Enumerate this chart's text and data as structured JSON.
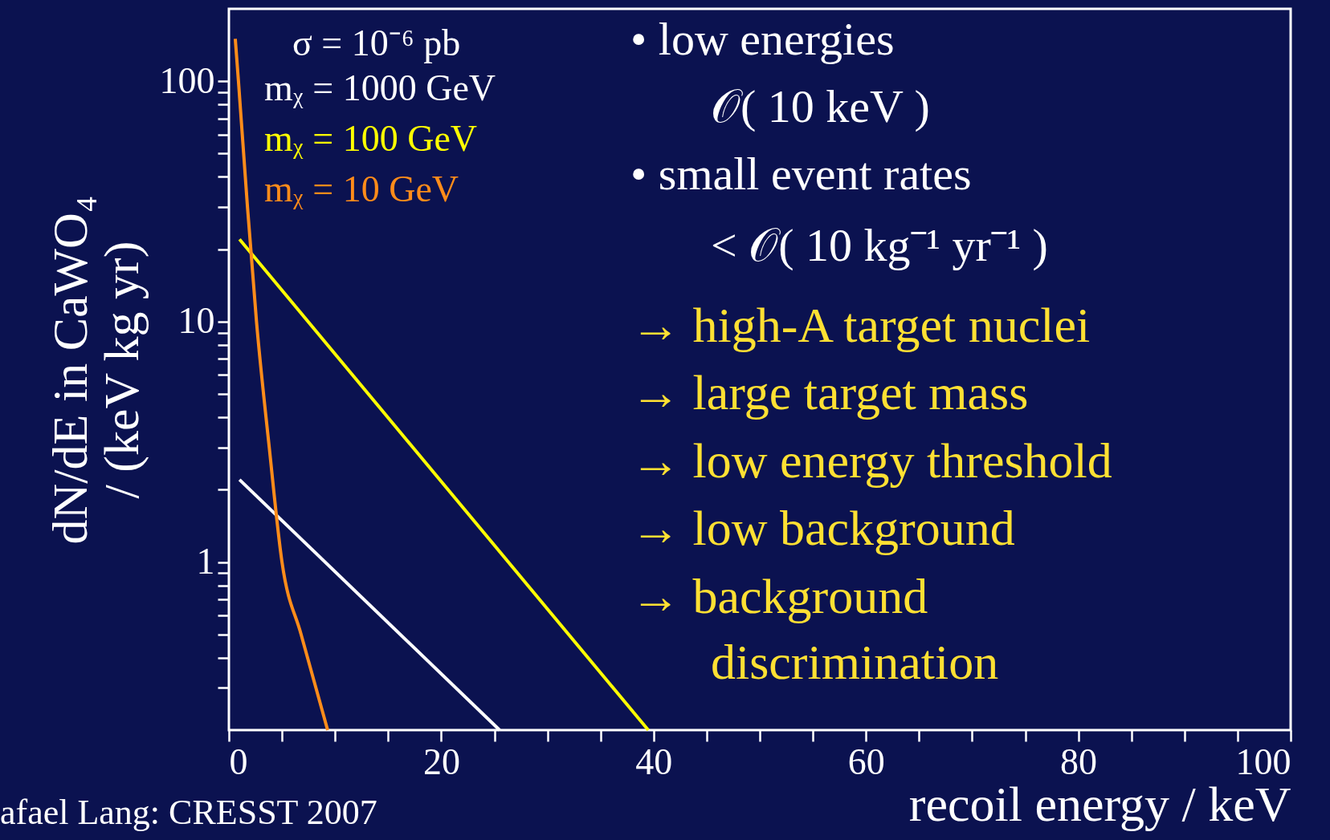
{
  "chart_data": {
    "type": "line",
    "xlabel": "recoil energy / keV",
    "ylabel": [
      "dN/dE in CaWO₄",
      "/ (keV kg yr)"
    ],
    "xlim": [
      0,
      100
    ],
    "ylim": [
      0.2,
      200
    ],
    "log": "y",
    "xticks": [
      0,
      {
        "value": 5,
        "label": null
      },
      {
        "value": 10,
        "label": null
      },
      {
        "value": 15,
        "label": null
      },
      20,
      {
        "value": 25,
        "label": null
      },
      {
        "value": 30,
        "label": null
      },
      {
        "value": 35,
        "label": null
      },
      40,
      {
        "value": 45,
        "label": null
      },
      {
        "value": 50,
        "label": null
      },
      {
        "value": 55,
        "label": null
      },
      60,
      {
        "value": 65,
        "label": null
      },
      {
        "value": 70,
        "label": null
      },
      {
        "value": 75,
        "label": null
      },
      80,
      {
        "value": 85,
        "label": null
      },
      {
        "value": 90,
        "label": null
      },
      {
        "value": 95,
        "label": null
      },
      100
    ],
    "yticks": [
      {
        "value": 0.3,
        "label": null
      },
      {
        "value": 0.4,
        "label": null
      },
      {
        "value": 0.5,
        "label": null
      },
      {
        "value": 0.6,
        "label": null
      },
      {
        "value": 0.7,
        "label": null
      },
      {
        "value": 0.8,
        "label": null
      },
      {
        "value": 0.9,
        "label": null
      },
      1,
      {
        "value": 2,
        "label": null
      },
      {
        "value": 3,
        "label": null
      },
      {
        "value": 4,
        "label": null
      },
      {
        "value": 5,
        "label": null
      },
      {
        "value": 6,
        "label": null
      },
      {
        "value": 7,
        "label": null
      },
      {
        "value": 8,
        "label": null
      },
      {
        "value": 9,
        "label": null
      },
      10,
      {
        "value": 20,
        "label": null
      },
      {
        "value": 30,
        "label": null
      },
      {
        "value": 40,
        "label": null
      },
      {
        "value": 50,
        "label": null
      },
      {
        "value": 60,
        "label": null
      },
      {
        "value": 70,
        "label": null
      },
      {
        "value": 80,
        "label": null
      },
      {
        "value": 90,
        "label": null
      },
      100
    ],
    "grid": false,
    "legend": "top left",
    "marker": "none",
    "line_style": "solid",
    "series": [
      {
        "name": "mᵪ = 1000 GeV",
        "color": "#ffffff",
        "x": [
          1,
          25.5
        ],
        "values": [
          2.2,
          0.2
        ]
      },
      {
        "name": "mᵪ = 100 GeV",
        "color": "#ffff00",
        "x": [
          1,
          39.5
        ],
        "values": [
          22,
          0.2
        ]
      },
      {
        "name": "mᵪ = 10 GeV",
        "color": "#ff8c1a",
        "x": [
          0.6,
          0.9,
          1.75,
          2.6,
          3.8,
          5,
          6.8,
          9.3
        ],
        "values": [
          150,
          100,
          30,
          10,
          3,
          1,
          0.5,
          0.2
        ]
      }
    ],
    "annotations": [
      "σ = 10⁻⁶ pb",
      "•   low energies",
      "𝒪( 10 keV )",
      "•   small event rates",
      "< 𝒪( 10 kg⁻¹ yr⁻¹ )",
      "→ high-A target nuclei",
      "→ large target mass",
      "→ low energy threshold",
      "→ low background",
      "→ background",
      "discrimination",
      "afael Lang: CRESST 2007"
    ]
  }
}
